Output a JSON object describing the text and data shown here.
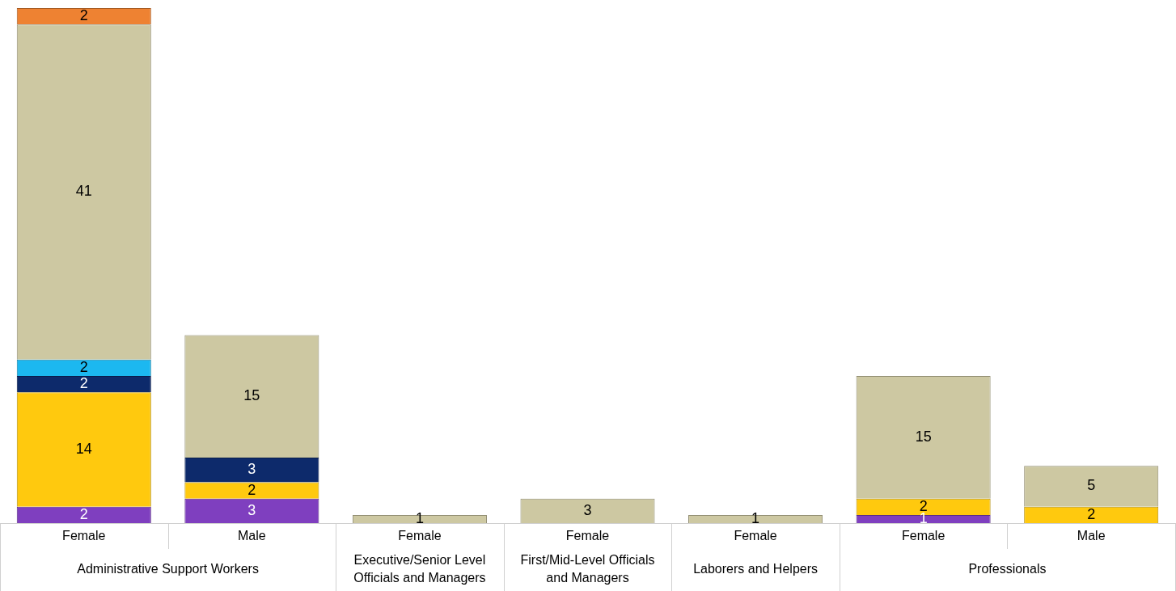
{
  "chart_data": {
    "type": "bar",
    "stacked": true,
    "data_labels": true,
    "legend": false,
    "grid": false,
    "categories": [
      "Female",
      "Male",
      "Female",
      "Female",
      "Female",
      "Female",
      "Male"
    ],
    "annotations": [
      "Administrative Support Workers",
      "Executive/Senior Level Officials and Managers",
      "First/Mid-Level Officials and Managers",
      "Laborers and Helpers",
      "Professionals"
    ],
    "series": [
      {
        "color": "#7f3fbf",
        "values": [
          2,
          3,
          null,
          null,
          null,
          1,
          null
        ]
      },
      {
        "color": "#ffc90e",
        "values": [
          14,
          2,
          null,
          null,
          null,
          2,
          2
        ]
      },
      {
        "color": "#0d2a6b",
        "values": [
          2,
          3,
          null,
          null,
          null,
          null,
          null
        ]
      },
      {
        "color": "#1cb8f0",
        "values": [
          2,
          null,
          null,
          null,
          null,
          null,
          null
        ]
      },
      {
        "color": "#cdc8a2",
        "values": [
          41,
          15,
          1,
          3,
          1,
          15,
          5
        ]
      },
      {
        "color": "#ee8232",
        "values": [
          2,
          null,
          null,
          null,
          null,
          null,
          null
        ]
      }
    ]
  }
}
